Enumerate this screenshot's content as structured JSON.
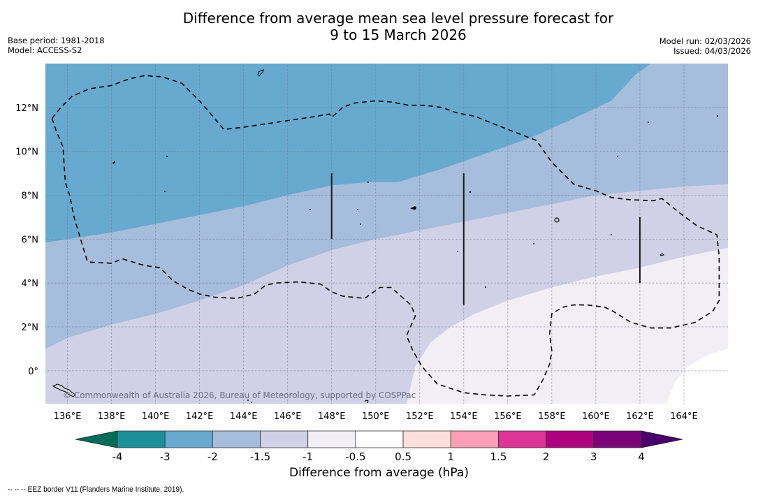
{
  "header": {
    "title_line1": "Difference from average mean sea level pressure forecast for",
    "title_line2": "9 to 15 March 2026",
    "base_period": "Base period: 1981-2018",
    "model": "Model: ACCESS-S2",
    "model_run": "Model run: 02/03/2026",
    "issued": "Issued: 04/03/2026"
  },
  "map": {
    "extent": {
      "lon_min": 135.0,
      "lon_max": 166.0,
      "lat_min": -1.5,
      "lat_max": 14.0
    },
    "lon_ticks": [
      136,
      138,
      140,
      142,
      144,
      146,
      148,
      150,
      152,
      154,
      156,
      158,
      160,
      162,
      164
    ],
    "lon_tick_labels": [
      "136°E",
      "138°E",
      "140°E",
      "142°E",
      "144°E",
      "146°E",
      "148°E",
      "150°E",
      "152°E",
      "154°E",
      "156°E",
      "158°E",
      "160°E",
      "162°E",
      "164°E"
    ],
    "lat_ticks": [
      0,
      2,
      4,
      6,
      8,
      10,
      12
    ],
    "lat_tick_labels": [
      "0°",
      "2°N",
      "4°N",
      "6°N",
      "8°N",
      "10°N",
      "12°N"
    ],
    "copyright": "© Commonwealth of Australia 2026, Bureau of Meteorology, supported by COSPPac",
    "field_regions": [
      {
        "band": "-3 to -2",
        "color": "#67a9cf",
        "boundary": [
          [
            135,
            5.85
          ],
          [
            138,
            6.3
          ],
          [
            141,
            6.9
          ],
          [
            144,
            7.5
          ],
          [
            146,
            8.0
          ],
          [
            148,
            8.45
          ],
          [
            149.7,
            8.6
          ],
          [
            151,
            8.6
          ],
          [
            153,
            9.2
          ],
          [
            155,
            9.9
          ],
          [
            157,
            10.6
          ],
          [
            159,
            11.5
          ],
          [
            160.7,
            12.3
          ],
          [
            161.8,
            13.5
          ],
          [
            162.5,
            14.0
          ]
        ]
      },
      {
        "band": "-2 to -1.5",
        "color": "#a6bddb",
        "boundary": [
          [
            135,
            1.0
          ],
          [
            136,
            1.5
          ],
          [
            138,
            2.1
          ],
          [
            140,
            2.6
          ],
          [
            142,
            3.2
          ],
          [
            144,
            3.9
          ],
          [
            146,
            4.8
          ],
          [
            148,
            5.5
          ],
          [
            150,
            6.0
          ],
          [
            152,
            6.4
          ],
          [
            154,
            6.8
          ],
          [
            156,
            7.2
          ],
          [
            158,
            7.6
          ],
          [
            160,
            8.0
          ],
          [
            162,
            8.2
          ],
          [
            164,
            8.4
          ],
          [
            166,
            8.5
          ]
        ]
      },
      {
        "band": "-1.5 to -1",
        "color": "#d0d1e6",
        "boundary": [
          [
            151.4,
            -1.5
          ],
          [
            151.8,
            0.2
          ],
          [
            152.5,
            1.3
          ],
          [
            153.4,
            2.0
          ],
          [
            154.5,
            2.6
          ],
          [
            156,
            3.2
          ],
          [
            158,
            3.8
          ],
          [
            160,
            4.3
          ],
          [
            162,
            4.7
          ],
          [
            164,
            5.2
          ],
          [
            166,
            5.6
          ]
        ]
      },
      {
        "band": "-1 to -0.5",
        "color": "#f1eef6",
        "boundary": [
          [
            163.2,
            -1.5
          ],
          [
            163.6,
            -0.5
          ],
          [
            164.2,
            0.2
          ],
          [
            165,
            0.7
          ],
          [
            166,
            1.0
          ]
        ]
      }
    ],
    "eez_border": [
      [
        135.3,
        11.5
      ],
      [
        135.7,
        12.0
      ],
      [
        136.2,
        12.5
      ],
      [
        137,
        12.85
      ],
      [
        138,
        13.0
      ],
      [
        138.8,
        13.3
      ],
      [
        139.5,
        13.45
      ],
      [
        140.3,
        13.4
      ],
      [
        141.2,
        13.1
      ],
      [
        142,
        12.3
      ],
      [
        142.6,
        11.6
      ],
      [
        143.1,
        11.0
      ],
      [
        144,
        11.1
      ],
      [
        145,
        11.25
      ],
      [
        146,
        11.4
      ],
      [
        147,
        11.55
      ],
      [
        147.9,
        11.7
      ],
      [
        148,
        11.55
      ],
      [
        148.5,
        12.0
      ],
      [
        149,
        12.2
      ],
      [
        150,
        12.3
      ],
      [
        150.7,
        12.25
      ],
      [
        151.5,
        12.1
      ],
      [
        152.2,
        12.1
      ],
      [
        153,
        12.0
      ],
      [
        153.7,
        11.75
      ],
      [
        154.5,
        11.6
      ],
      [
        155,
        11.4
      ],
      [
        156,
        11.0
      ],
      [
        157.3,
        10.5
      ],
      [
        158,
        9.5
      ],
      [
        159,
        8.5
      ],
      [
        160,
        8.2
      ],
      [
        160.7,
        7.9
      ],
      [
        161.5,
        7.8
      ],
      [
        162.6,
        7.75
      ],
      [
        163,
        7.85
      ],
      [
        163.8,
        7.2
      ],
      [
        164.6,
        6.6
      ],
      [
        165.5,
        6.2
      ],
      [
        165.6,
        5.2
      ],
      [
        165.6,
        4.1
      ],
      [
        165.6,
        3.2
      ],
      [
        165.3,
        2.7
      ],
      [
        164.5,
        2.2
      ],
      [
        163.4,
        1.95
      ],
      [
        162.5,
        1.95
      ],
      [
        161.6,
        2.2
      ],
      [
        160.8,
        2.7
      ],
      [
        160.4,
        2.9
      ],
      [
        159.6,
        3.0
      ],
      [
        159,
        3.0
      ],
      [
        158.5,
        2.9
      ],
      [
        158,
        2.6
      ],
      [
        157.9,
        1.7
      ],
      [
        158,
        0.9
      ],
      [
        157.9,
        0.3
      ],
      [
        157.6,
        -0.4
      ],
      [
        157.2,
        -1.1
      ],
      [
        156,
        -1.15
      ],
      [
        155,
        -1.1
      ],
      [
        154,
        -1.0
      ],
      [
        152.8,
        -0.6
      ],
      [
        152.1,
        0.2
      ],
      [
        151.7,
        0.9
      ],
      [
        151.4,
        1.6
      ],
      [
        151.8,
        2.5
      ],
      [
        151.6,
        3.0
      ],
      [
        150.7,
        3.8
      ],
      [
        150.2,
        3.8
      ],
      [
        149.5,
        3.3
      ],
      [
        148.5,
        3.4
      ],
      [
        148,
        3.6
      ],
      [
        147.5,
        3.95
      ],
      [
        146.5,
        4.05
      ],
      [
        145.5,
        4.0
      ],
      [
        145.0,
        3.9
      ],
      [
        144.5,
        3.5
      ],
      [
        143.7,
        3.3
      ],
      [
        142.7,
        3.35
      ],
      [
        142,
        3.5
      ],
      [
        141.5,
        3.7
      ],
      [
        140.8,
        4.1
      ],
      [
        140.2,
        4.7
      ],
      [
        139.5,
        4.8
      ],
      [
        138.5,
        5.1
      ],
      [
        138,
        4.9
      ],
      [
        137,
        4.95
      ],
      [
        136.9,
        5.0
      ],
      [
        136.6,
        6.0
      ],
      [
        136.3,
        7.0
      ],
      [
        136.1,
        8.0
      ],
      [
        135.9,
        8.6
      ],
      [
        135.8,
        10.2
      ],
      [
        135.5,
        10.9
      ],
      [
        135.3,
        11.5
      ]
    ],
    "meridian_markers": [
      {
        "lon": 148,
        "lat_from": 6.0,
        "lat_to": 9.0
      },
      {
        "lon": 154,
        "lat_from": 3.0,
        "lat_to": 9.0
      },
      {
        "lon": 162,
        "lat_from": 4.0,
        "lat_to": 7.0
      }
    ]
  },
  "colorbar": {
    "title": "Difference from average (hPa)",
    "bounds": [
      -4,
      -3,
      -2,
      -1.5,
      -1,
      -0.5,
      0.5,
      1,
      1.5,
      2,
      3,
      4
    ],
    "tick_labels": [
      "-4",
      "-3",
      "-2",
      "-1.5",
      "-1",
      "-0.5",
      "0.5",
      "1",
      "1.5",
      "2",
      "3",
      "4"
    ],
    "colors": [
      "#1c9099",
      "#67a9cf",
      "#a6bddb",
      "#d0d1e6",
      "#f1eef6",
      "#ffffff",
      "#fde0dd",
      "#fa9fb5",
      "#dd3497",
      "#ae017e",
      "#7a0177"
    ],
    "extend_low_color": "#016c59",
    "extend_high_color": "#49006a"
  },
  "footer": {
    "eez_note": "-- -- -- EEZ border V11 (Flanders Marine Institute, 2019)."
  }
}
